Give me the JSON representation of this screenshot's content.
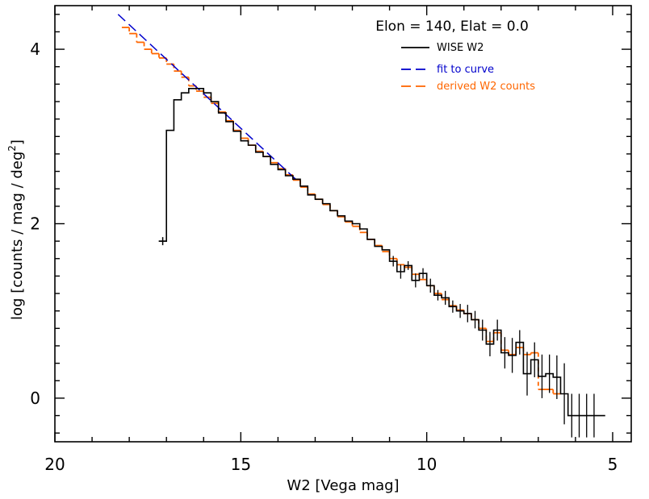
{
  "chart_data": {
    "type": "line",
    "title": "Elon = 140, Elat = 0.0",
    "xlabel": "W2 [Vega mag]",
    "ylabel_main": "log [counts / mag / deg",
    "ylabel_sup": "2",
    "ylabel_end": "]",
    "xlim": [
      20,
      4.5
    ],
    "ylim": [
      -0.5,
      4.5
    ],
    "x_ticks": [
      20,
      15,
      10,
      5
    ],
    "x_tick_labels": [
      "20",
      "15",
      "10",
      "5"
    ],
    "y_ticks": [
      0,
      2,
      4
    ],
    "y_tick_labels": [
      "0",
      "2",
      "4"
    ],
    "legend": [
      {
        "label": "WISE W2",
        "color": "#000000",
        "style": "solid"
      },
      {
        "label": "fit to curve",
        "color": "#0000cc",
        "style": "dashed"
      },
      {
        "label": "derived W2 counts",
        "color": "#ff6600",
        "style": "dashed"
      }
    ],
    "series": [
      {
        "name": "WISE W2",
        "color": "#000000",
        "style": "step",
        "x": [
          17.1,
          16.9,
          16.7,
          16.5,
          16.3,
          16.1,
          15.9,
          15.7,
          15.5,
          15.3,
          15.1,
          14.9,
          14.7,
          14.5,
          14.3,
          14.1,
          13.9,
          13.7,
          13.5,
          13.3,
          13.1,
          12.9,
          12.7,
          12.5,
          12.3,
          12.1,
          11.9,
          11.7,
          11.5,
          11.3,
          11.1,
          10.9,
          10.7,
          10.5,
          10.3,
          10.1,
          9.9,
          9.7,
          9.5,
          9.3,
          9.1,
          8.9,
          8.7,
          8.5,
          8.3,
          8.1,
          7.9,
          7.7,
          7.5,
          7.3,
          7.1,
          6.9,
          6.7,
          6.5,
          6.3,
          6.1,
          5.9,
          5.7,
          5.5,
          5.3
        ],
        "values": [
          1.8,
          3.07,
          3.42,
          3.5,
          3.55,
          3.55,
          3.5,
          3.4,
          3.27,
          3.17,
          3.06,
          2.95,
          2.9,
          2.82,
          2.77,
          2.68,
          2.62,
          2.55,
          2.51,
          2.43,
          2.33,
          2.28,
          2.23,
          2.15,
          2.09,
          2.03,
          2.0,
          1.94,
          1.82,
          1.74,
          1.7,
          1.57,
          1.45,
          1.52,
          1.35,
          1.43,
          1.29,
          1.18,
          1.15,
          1.05,
          1.0,
          0.97,
          0.9,
          0.78,
          0.62,
          0.78,
          0.52,
          0.49,
          0.64,
          0.28,
          0.44,
          0.25,
          0.28,
          0.24,
          0.05,
          -0.2,
          -0.2,
          -0.2,
          -0.2,
          -0.2
        ],
        "errors": [
          0.0,
          0.0,
          0.0,
          0.0,
          0.0,
          0.0,
          0.0,
          0.0,
          0.0,
          0.0,
          0.0,
          0.0,
          0.0,
          0.0,
          0.0,
          0.0,
          0.0,
          0.0,
          0.0,
          0.0,
          0.0,
          0.0,
          0.0,
          0.0,
          0.0,
          0.0,
          0.0,
          0.0,
          0.0,
          0.0,
          0.0,
          0.06,
          0.08,
          0.05,
          0.08,
          0.06,
          0.08,
          0.06,
          0.08,
          0.07,
          0.08,
          0.1,
          0.1,
          0.12,
          0.14,
          0.12,
          0.18,
          0.2,
          0.14,
          0.25,
          0.2,
          0.25,
          0.22,
          0.25,
          0.35,
          0.25,
          0.25,
          0.25,
          0.25,
          0.0
        ]
      },
      {
        "name": "fit to curve",
        "color": "#0000cc",
        "style": "dashed",
        "x": [
          18.3,
          13.5
        ],
        "values": [
          4.4,
          2.5
        ]
      },
      {
        "name": "derived W2 counts",
        "color": "#ff6600",
        "style": "step-dashed",
        "x": [
          18.1,
          17.9,
          17.7,
          17.5,
          17.3,
          17.1,
          16.9,
          16.7,
          16.5,
          16.3,
          16.1,
          15.9,
          15.7,
          15.5,
          15.3,
          15.1,
          14.9,
          14.7,
          14.5,
          14.3,
          14.1,
          13.9,
          13.7,
          13.5,
          13.3,
          13.1,
          12.9,
          12.7,
          12.5,
          12.3,
          12.1,
          11.9,
          11.7,
          11.5,
          11.3,
          11.1,
          10.9,
          10.7,
          10.5,
          10.3,
          10.1,
          9.9,
          9.7,
          9.5,
          9.3,
          9.1,
          8.9,
          8.7,
          8.5,
          8.3,
          8.1,
          7.9,
          7.7,
          7.5,
          7.3,
          7.1,
          6.9,
          6.7,
          6.5
        ],
        "values": [
          4.25,
          4.18,
          4.08,
          4.0,
          3.95,
          3.9,
          3.83,
          3.75,
          3.68,
          3.58,
          3.52,
          3.45,
          3.38,
          3.28,
          3.18,
          3.07,
          2.98,
          2.9,
          2.83,
          2.77,
          2.7,
          2.63,
          2.56,
          2.5,
          2.42,
          2.34,
          2.28,
          2.22,
          2.15,
          2.08,
          2.02,
          1.97,
          1.9,
          1.82,
          1.75,
          1.68,
          1.6,
          1.53,
          1.5,
          1.42,
          1.36,
          1.29,
          1.2,
          1.13,
          1.06,
          1.01,
          0.97,
          0.9,
          0.8,
          0.65,
          0.75,
          0.55,
          0.5,
          0.58,
          0.5,
          0.52,
          0.1,
          0.1,
          0.05
        ]
      }
    ]
  }
}
